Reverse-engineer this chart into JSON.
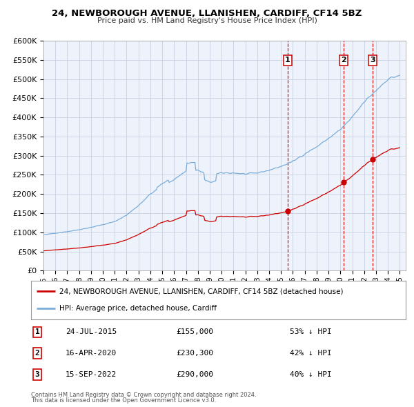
{
  "title1": "24, NEWBOROUGH AVENUE, LLANISHEN, CARDIFF, CF14 5BZ",
  "title2": "Price paid vs. HM Land Registry's House Price Index (HPI)",
  "ylim": [
    0,
    600000
  ],
  "yticks": [
    0,
    50000,
    100000,
    150000,
    200000,
    250000,
    300000,
    350000,
    400000,
    450000,
    500000,
    550000,
    600000
  ],
  "xlim_start": 1995.0,
  "xlim_end": 2025.5,
  "background_color": "#ffffff",
  "plot_bg_color": "#eef2fa",
  "grid_color": "#c8d0e0",
  "hpi_color": "#7aaddb",
  "sale_color": "#cc0000",
  "sale_points": [
    {
      "year": 2015.56,
      "value": 155000,
      "label": "1"
    },
    {
      "year": 2020.29,
      "value": 230300,
      "label": "2"
    },
    {
      "year": 2022.71,
      "value": 290000,
      "label": "3"
    }
  ],
  "vline_color": "#cc0000",
  "legend_entries": [
    {
      "label": "24, NEWBOROUGH AVENUE, LLANISHEN, CARDIFF, CF14 5BZ (detached house)",
      "color": "#cc0000"
    },
    {
      "label": "HPI: Average price, detached house, Cardiff",
      "color": "#7aaddb"
    }
  ],
  "table_rows": [
    {
      "num": "1",
      "date": "24-JUL-2015",
      "price": "£155,000",
      "hpi": "53% ↓ HPI"
    },
    {
      "num": "2",
      "date": "16-APR-2020",
      "price": "£230,300",
      "hpi": "42% ↓ HPI"
    },
    {
      "num": "3",
      "date": "15-SEP-2022",
      "price": "£290,000",
      "hpi": "40% ↓ HPI"
    }
  ],
  "footnote1": "Contains HM Land Registry data © Crown copyright and database right 2024.",
  "footnote2": "This data is licensed under the Open Government Licence v3.0."
}
